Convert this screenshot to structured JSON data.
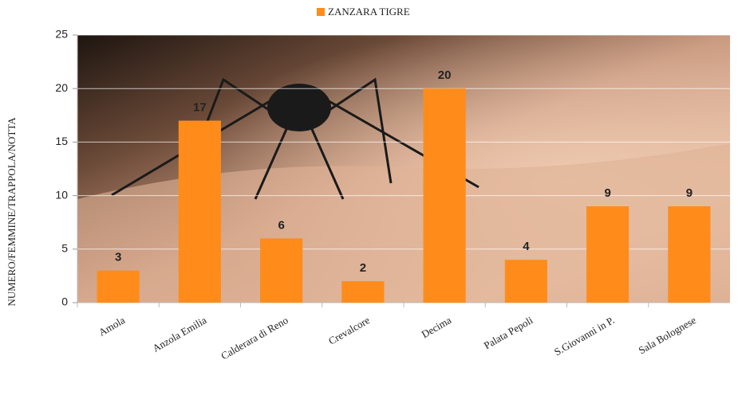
{
  "chart_data": {
    "type": "bar",
    "y_label": "NUMERO/FEMMINE/TRAPPOLA/NOTTA",
    "categories": [
      "Amola",
      "Anzola Emilia",
      "Calderara di Reno",
      "Crevalcore",
      "Decima",
      "Palata Pepoli",
      "S.Giovanni in P.",
      "Sala Bolognese"
    ],
    "series": [
      {
        "name": "ZANZARA TIGRE",
        "color": "#ff8c1a",
        "values": [
          3,
          17,
          6,
          2,
          20,
          4,
          9,
          9
        ]
      }
    ],
    "ylim": [
      0,
      25
    ],
    "yticks": [
      0,
      5,
      10,
      15,
      20,
      25
    ],
    "grid": true,
    "legend": "top"
  }
}
